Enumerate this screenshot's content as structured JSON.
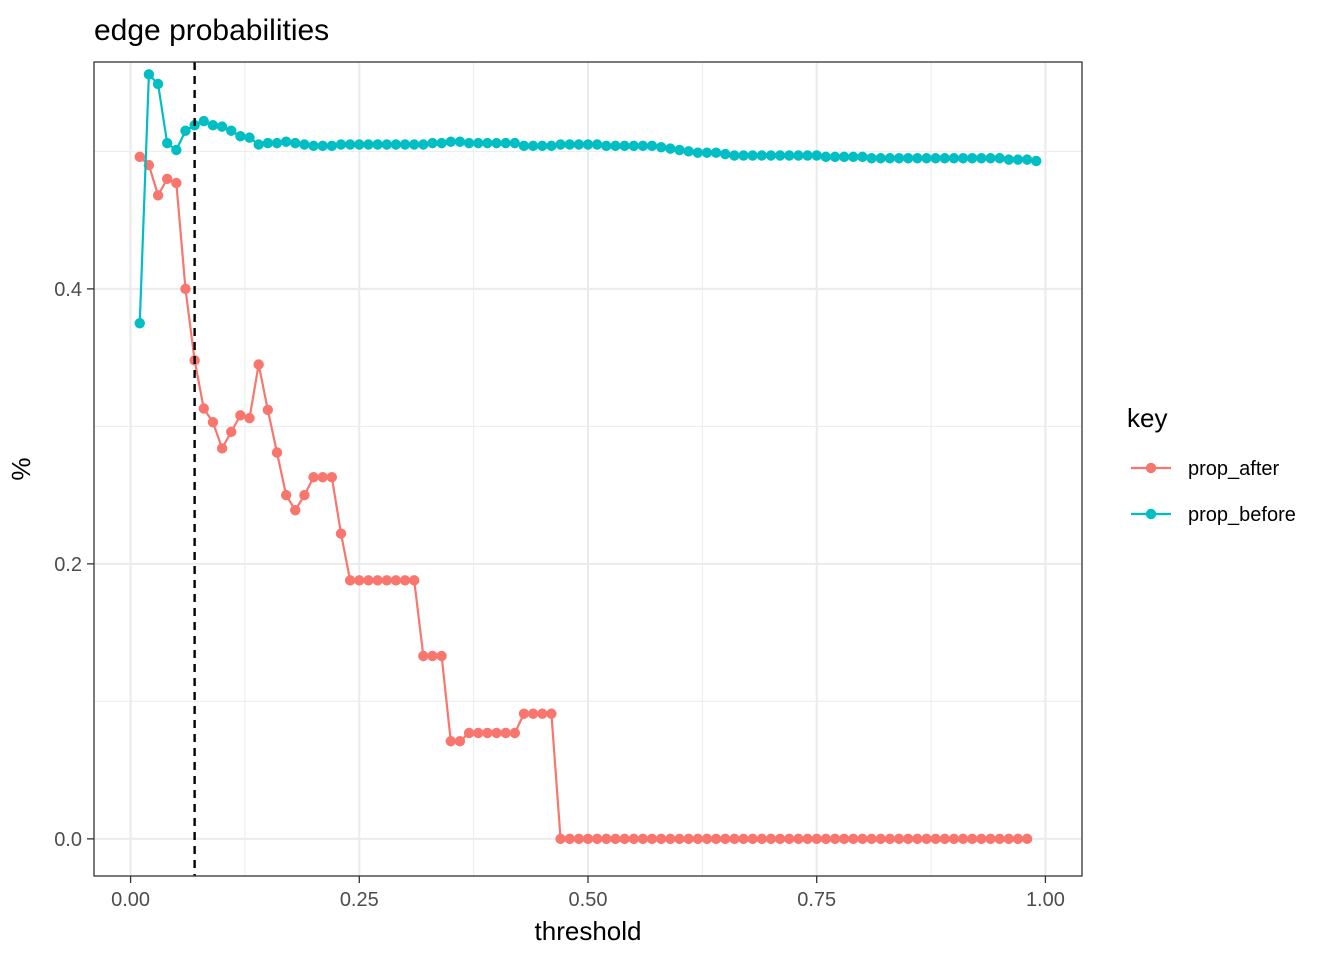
{
  "chart_data": {
    "type": "line",
    "title": "edge probabilities",
    "xlabel": "threshold",
    "ylabel": "%",
    "xlim": [
      -0.04,
      1.04
    ],
    "ylim": [
      -0.027,
      0.565
    ],
    "x_ticks": [
      0.0,
      0.25,
      0.5,
      0.75,
      1.0
    ],
    "x_tick_labels": [
      "0.00",
      "0.25",
      "0.50",
      "0.75",
      "1.00"
    ],
    "y_ticks": [
      0.0,
      0.2,
      0.4
    ],
    "y_tick_labels": [
      "0.0",
      "0.2",
      "0.4"
    ],
    "grid": true,
    "vline": {
      "x": 0.07,
      "style": "dashed",
      "color": "#000000"
    },
    "legend": {
      "title": "key",
      "placement": "right"
    },
    "series": [
      {
        "name": "prop_after",
        "color": "#F8766D",
        "x": [
          0.01,
          0.02,
          0.03,
          0.04,
          0.05,
          0.06,
          0.07,
          0.08,
          0.09,
          0.1,
          0.11,
          0.12,
          0.13,
          0.14,
          0.15,
          0.16,
          0.17,
          0.18,
          0.19,
          0.2,
          0.21,
          0.22,
          0.23,
          0.24,
          0.25,
          0.26,
          0.27,
          0.28,
          0.29,
          0.3,
          0.31,
          0.32,
          0.33,
          0.34,
          0.35,
          0.36,
          0.37,
          0.38,
          0.39,
          0.4,
          0.41,
          0.42,
          0.43,
          0.44,
          0.45,
          0.46,
          0.47,
          0.48,
          0.49,
          0.5,
          0.51,
          0.52,
          0.53,
          0.54,
          0.55,
          0.56,
          0.57,
          0.58,
          0.59,
          0.6,
          0.61,
          0.62,
          0.63,
          0.64,
          0.65,
          0.66,
          0.67,
          0.68,
          0.69,
          0.7,
          0.71,
          0.72,
          0.73,
          0.74,
          0.75,
          0.76,
          0.77,
          0.78,
          0.79,
          0.8,
          0.81,
          0.82,
          0.83,
          0.84,
          0.85,
          0.86,
          0.87,
          0.88,
          0.89,
          0.9,
          0.91,
          0.92,
          0.93,
          0.94,
          0.95,
          0.96,
          0.97,
          0.98
        ],
        "values": [
          0.496,
          0.49,
          0.468,
          0.48,
          0.477,
          0.4,
          0.348,
          0.313,
          0.303,
          0.284,
          0.296,
          0.308,
          0.306,
          0.345,
          0.312,
          0.281,
          0.25,
          0.239,
          0.25,
          0.263,
          0.263,
          0.263,
          0.222,
          0.188,
          0.188,
          0.188,
          0.188,
          0.188,
          0.188,
          0.188,
          0.188,
          0.133,
          0.133,
          0.133,
          0.071,
          0.071,
          0.077,
          0.077,
          0.077,
          0.077,
          0.077,
          0.077,
          0.091,
          0.091,
          0.091,
          0.091,
          0,
          0,
          0,
          0,
          0,
          0,
          0,
          0,
          0,
          0,
          0,
          0,
          0,
          0,
          0,
          0,
          0,
          0,
          0,
          0,
          0,
          0,
          0,
          0,
          0,
          0,
          0,
          0,
          0,
          0,
          0,
          0,
          0,
          0,
          0,
          0,
          0,
          0,
          0,
          0,
          0,
          0,
          0,
          0,
          0,
          0,
          0,
          0,
          0,
          0,
          0,
          0
        ]
      },
      {
        "name": "prop_before",
        "color": "#00BFC4",
        "x": [
          0.01,
          0.02,
          0.03,
          0.04,
          0.05,
          0.06,
          0.07,
          0.08,
          0.09,
          0.1,
          0.11,
          0.12,
          0.13,
          0.14,
          0.15,
          0.16,
          0.17,
          0.18,
          0.19,
          0.2,
          0.21,
          0.22,
          0.23,
          0.24,
          0.25,
          0.26,
          0.27,
          0.28,
          0.29,
          0.3,
          0.31,
          0.32,
          0.33,
          0.34,
          0.35,
          0.36,
          0.37,
          0.38,
          0.39,
          0.4,
          0.41,
          0.42,
          0.43,
          0.44,
          0.45,
          0.46,
          0.47,
          0.48,
          0.49,
          0.5,
          0.51,
          0.52,
          0.53,
          0.54,
          0.55,
          0.56,
          0.57,
          0.58,
          0.59,
          0.6,
          0.61,
          0.62,
          0.63,
          0.64,
          0.65,
          0.66,
          0.67,
          0.68,
          0.69,
          0.7,
          0.71,
          0.72,
          0.73,
          0.74,
          0.75,
          0.76,
          0.77,
          0.78,
          0.79,
          0.8,
          0.81,
          0.82,
          0.83,
          0.84,
          0.85,
          0.86,
          0.87,
          0.88,
          0.89,
          0.9,
          0.91,
          0.92,
          0.93,
          0.94,
          0.95,
          0.96,
          0.97,
          0.98,
          0.99
        ],
        "values": [
          0.375,
          0.556,
          0.549,
          0.506,
          0.501,
          0.515,
          0.519,
          0.522,
          0.519,
          0.518,
          0.515,
          0.511,
          0.51,
          0.505,
          0.506,
          0.506,
          0.507,
          0.506,
          0.505,
          0.504,
          0.504,
          0.504,
          0.505,
          0.505,
          0.505,
          0.505,
          0.505,
          0.505,
          0.505,
          0.505,
          0.505,
          0.505,
          0.506,
          0.506,
          0.507,
          0.507,
          0.506,
          0.506,
          0.506,
          0.506,
          0.506,
          0.506,
          0.504,
          0.504,
          0.504,
          0.504,
          0.505,
          0.505,
          0.505,
          0.505,
          0.505,
          0.504,
          0.504,
          0.504,
          0.504,
          0.504,
          0.504,
          0.503,
          0.502,
          0.501,
          0.5,
          0.499,
          0.499,
          0.499,
          0.498,
          0.497,
          0.497,
          0.497,
          0.497,
          0.497,
          0.497,
          0.497,
          0.497,
          0.497,
          0.497,
          0.496,
          0.496,
          0.496,
          0.496,
          0.496,
          0.495,
          0.495,
          0.495,
          0.495,
          0.495,
          0.495,
          0.495,
          0.495,
          0.495,
          0.495,
          0.495,
          0.495,
          0.495,
          0.495,
          0.495,
          0.494,
          0.494,
          0.494,
          0.493
        ]
      }
    ]
  }
}
